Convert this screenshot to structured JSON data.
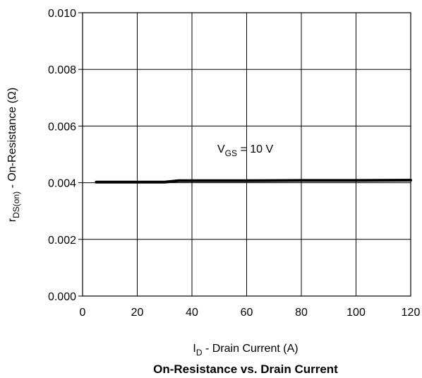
{
  "chart_data": {
    "type": "line",
    "title": "On-Resistance vs. Drain Current",
    "xlabel": {
      "main": "I",
      "sub": "D",
      "rest": " - Drain Current (A)"
    },
    "ylabel": {
      "main": "r",
      "sub": "DS(on)",
      "rest": " - On-Resistance (Ω)"
    },
    "xlim": [
      0,
      120
    ],
    "ylim": [
      0,
      0.01
    ],
    "xticks": [
      "0",
      "20",
      "40",
      "60",
      "80",
      "100",
      "120"
    ],
    "yticks": [
      "0.000",
      "0.002",
      "0.004",
      "0.006",
      "0.008",
      "0.010"
    ],
    "grid": true,
    "annotation": {
      "main": "V",
      "sub": "GS",
      "rest": " = 10 V"
    },
    "series": [
      {
        "x": [
          5,
          10,
          20,
          30,
          35,
          40,
          60,
          80,
          100,
          120
        ],
        "y": [
          0.00402,
          0.00402,
          0.00402,
          0.00402,
          0.00407,
          0.00407,
          0.00407,
          0.00408,
          0.00408,
          0.00409
        ]
      }
    ]
  }
}
